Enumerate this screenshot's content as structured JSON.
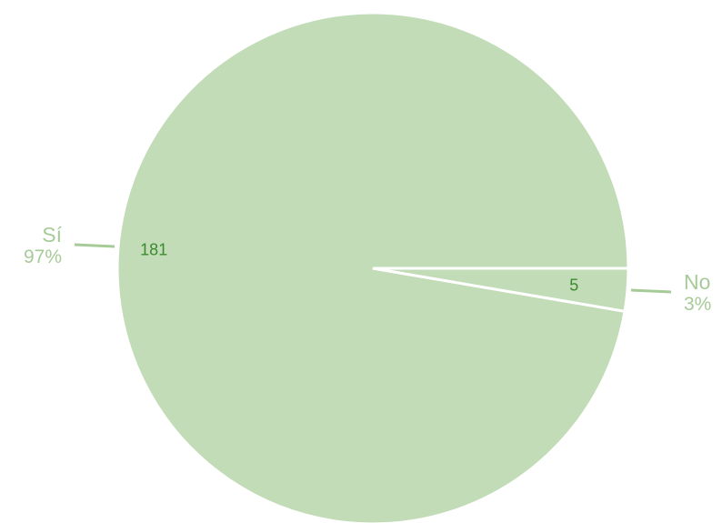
{
  "chart_data": {
    "type": "pie",
    "slices": [
      {
        "label": "Sí",
        "value": 181,
        "percent_label": "97%"
      },
      {
        "label": "No",
        "value": 5,
        "percent_label": "3%"
      }
    ],
    "title": "",
    "legend": "none"
  },
  "colors": {
    "slice_fill": "#c2dcb8",
    "slice_border": "#ffffff",
    "outer_label": "#a7cb98",
    "inner_label": "#3c8a2e"
  }
}
